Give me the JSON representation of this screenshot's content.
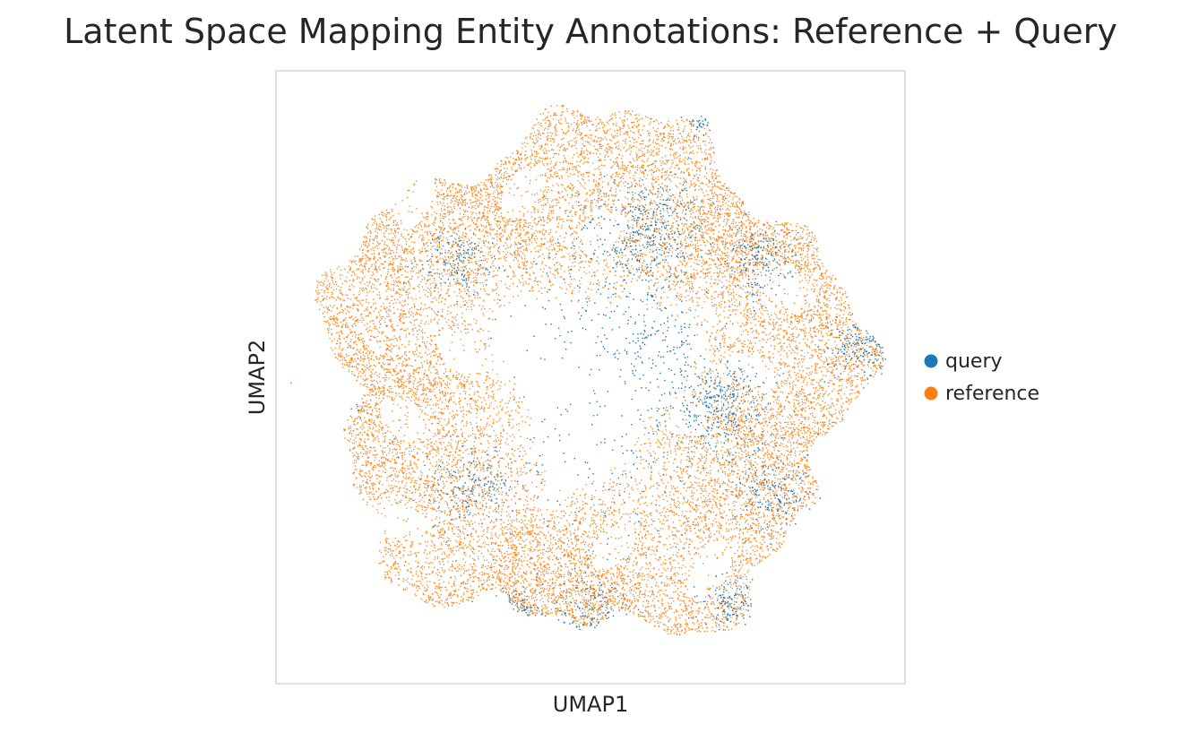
{
  "chart_data": {
    "type": "scatter",
    "title": "Latent Space Mapping Entity Annotations: Reference + Query",
    "xlabel": "UMAP1",
    "ylabel": "UMAP2",
    "xlim": [
      -1.05,
      1.05
    ],
    "ylim": [
      -1.05,
      1.05
    ],
    "grid": false,
    "show_ticks": false,
    "legend_position": "right",
    "point_size": "tiny",
    "series": [
      {
        "name": "query",
        "color": "#1f77b4",
        "count": 2600,
        "clusters": [
          {
            "x": 0.2,
            "y": 0.5,
            "sd": 0.09,
            "weight": 0.14
          },
          {
            "x": 0.43,
            "y": -0.1,
            "sd": 0.08,
            "weight": 0.13
          },
          {
            "x": 0.56,
            "y": 0.4,
            "sd": 0.06,
            "weight": 0.07
          },
          {
            "x": 0.9,
            "y": 0.1,
            "sd": 0.05,
            "weight": 0.06
          },
          {
            "x": -0.4,
            "y": -0.38,
            "sd": 0.07,
            "weight": 0.07
          },
          {
            "x": -0.45,
            "y": 0.4,
            "sd": 0.06,
            "weight": 0.06
          },
          {
            "x": 0.6,
            "y": -0.4,
            "sd": 0.07,
            "weight": 0.07
          },
          {
            "x": -0.25,
            "y": -0.8,
            "sd": 0.05,
            "weight": 0.05
          },
          {
            "x": 0.47,
            "y": -0.78,
            "sd": 0.05,
            "weight": 0.05
          },
          {
            "x": 0.0,
            "y": -0.8,
            "sd": 0.06,
            "weight": 0.05
          },
          {
            "x": 0.2,
            "y": 0.12,
            "sd": 0.1,
            "weight": 0.07
          },
          {
            "x": -0.85,
            "y": -0.1,
            "sd": 0.04,
            "weight": 0.03
          },
          {
            "x": 0.38,
            "y": 0.88,
            "sd": 0.03,
            "weight": 0.02
          },
          {
            "x": 0.0,
            "y": 0.3,
            "sd": 0.15,
            "weight": 0.06
          },
          {
            "x": 0.1,
            "y": -0.3,
            "sd": 0.2,
            "weight": 0.07
          }
        ]
      },
      {
        "name": "reference",
        "color": "#ff7f0e",
        "count": 16000,
        "ring": {
          "inner_radius": 0.28,
          "outer_radius": 0.97
        },
        "outliers": [
          {
            "x": -1.0,
            "y": -0.02
          }
        ]
      }
    ]
  }
}
